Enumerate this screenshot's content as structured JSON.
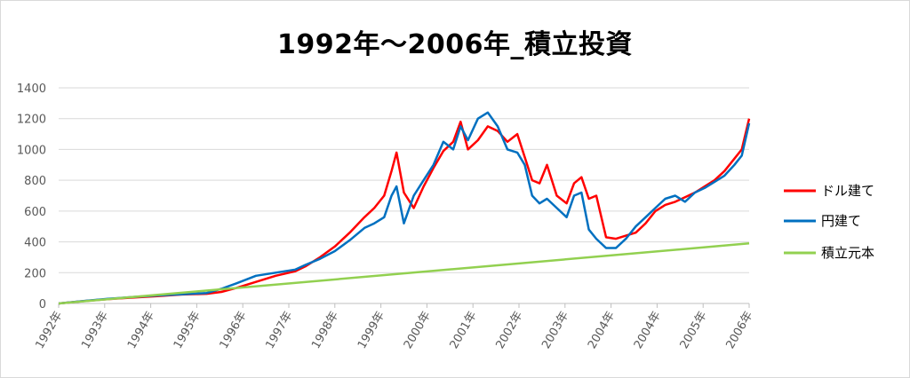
{
  "chart_data": {
    "type": "line",
    "title": "1992年～2006年_積立投資",
    "xlabel": "",
    "ylabel": "",
    "ylim": [
      0,
      1400
    ],
    "yticks": [
      0,
      200,
      400,
      600,
      800,
      1000,
      1200,
      1400
    ],
    "xlim": [
      1992.0,
      2006.0
    ],
    "x_tick_labels": [
      "1992年",
      "1993年",
      "1994年",
      "1995年",
      "1996年",
      "1997年",
      "1998年",
      "1999年",
      "2000年",
      "2001年",
      "2002年",
      "2003年",
      "2004年",
      "2004年",
      "2005年",
      "2006年"
    ],
    "grid": true,
    "legend_position": "right",
    "series": [
      {
        "name": "ドル建て",
        "color": "#ff0000",
        "x": [
          1992.0,
          1992.5,
          1993.0,
          1993.5,
          1994.0,
          1994.5,
          1995.0,
          1995.3,
          1995.6,
          1996.0,
          1996.4,
          1996.8,
          1997.0,
          1997.3,
          1997.6,
          1997.9,
          1998.2,
          1998.4,
          1998.6,
          1998.75,
          1998.85,
          1999.0,
          1999.2,
          1999.4,
          1999.6,
          1999.8,
          2000.0,
          2000.15,
          2000.3,
          2000.5,
          2000.7,
          2000.9,
          2001.1,
          2001.3,
          2001.45,
          2001.6,
          2001.75,
          2001.9,
          2002.1,
          2002.3,
          2002.45,
          2002.6,
          2002.75,
          2002.9,
          2003.1,
          2003.3,
          2003.5,
          2003.7,
          2003.9,
          2004.1,
          2004.3,
          2004.5,
          2004.7,
          2004.9,
          2005.1,
          2005.3,
          2005.5,
          2005.7,
          2005.85,
          2006.0
        ],
        "y": [
          0,
          15,
          28,
          38,
          48,
          58,
          63,
          75,
          100,
          140,
          180,
          210,
          240,
          300,
          370,
          460,
          560,
          620,
          700,
          860,
          980,
          720,
          620,
          760,
          880,
          990,
          1050,
          1180,
          1000,
          1060,
          1150,
          1120,
          1050,
          1100,
          950,
          800,
          780,
          900,
          700,
          650,
          780,
          820,
          680,
          700,
          430,
          420,
          440,
          460,
          520,
          600,
          640,
          660,
          690,
          720,
          760,
          800,
          860,
          940,
          1000,
          1200
        ]
      },
      {
        "name": "円建て",
        "color": "#0070c0",
        "x": [
          1992.0,
          1992.5,
          1993.0,
          1993.5,
          1994.0,
          1994.5,
          1995.0,
          1995.3,
          1995.6,
          1996.0,
          1996.4,
          1996.8,
          1997.0,
          1997.3,
          1997.6,
          1997.9,
          1998.2,
          1998.4,
          1998.6,
          1998.75,
          1998.85,
          1999.0,
          1999.2,
          1999.4,
          1999.6,
          1999.8,
          2000.0,
          2000.15,
          2000.3,
          2000.5,
          2000.7,
          2000.9,
          2001.1,
          2001.3,
          2001.45,
          2001.6,
          2001.75,
          2001.9,
          2002.1,
          2002.3,
          2002.45,
          2002.6,
          2002.75,
          2002.9,
          2003.1,
          2003.3,
          2003.5,
          2003.7,
          2003.9,
          2004.1,
          2004.3,
          2004.5,
          2004.7,
          2004.9,
          2005.1,
          2005.3,
          2005.5,
          2005.7,
          2005.85,
          2006.0
        ],
        "y": [
          0,
          16,
          30,
          42,
          52,
          60,
          68,
          95,
          130,
          180,
          200,
          220,
          250,
          290,
          340,
          410,
          490,
          520,
          560,
          700,
          760,
          520,
          700,
          800,
          900,
          1050,
          1000,
          1150,
          1060,
          1200,
          1240,
          1150,
          1000,
          980,
          900,
          700,
          650,
          680,
          620,
          560,
          700,
          720,
          480,
          420,
          360,
          360,
          420,
          500,
          560,
          620,
          680,
          700,
          660,
          720,
          750,
          790,
          830,
          900,
          960,
          1170
        ]
      },
      {
        "name": "積立元本",
        "color": "#92d050",
        "x": [
          1992.0,
          2006.0
        ],
        "y": [
          0,
          390
        ]
      }
    ]
  }
}
